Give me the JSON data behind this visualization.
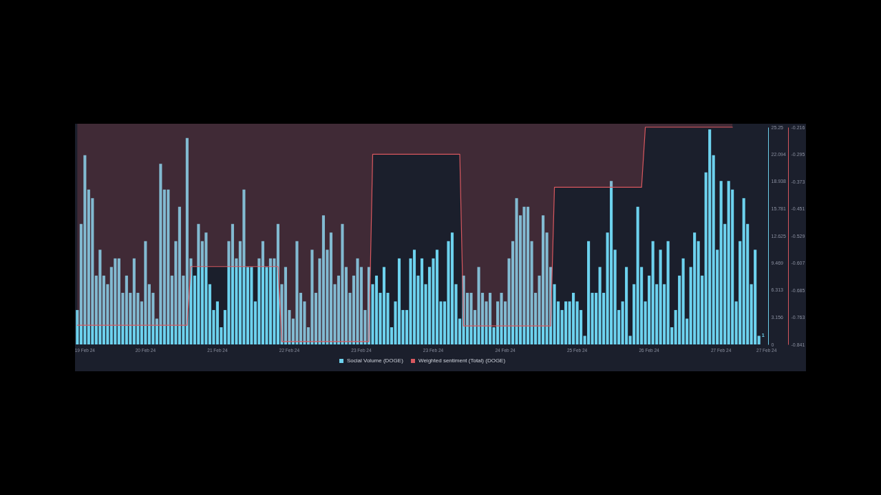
{
  "chart_data": {
    "type": "bar",
    "categories": [
      null,
      null,
      "19 Feb 24",
      null,
      null,
      null,
      null,
      null,
      null,
      null,
      null,
      null,
      null,
      null,
      null,
      null,
      null,
      null,
      "20 Feb 24",
      null,
      null,
      null,
      null,
      null,
      null,
      null,
      null,
      null,
      null,
      null,
      null,
      null,
      null,
      null,
      null,
      null,
      null,
      "21 Feb 24",
      null,
      null,
      null,
      null,
      null,
      null,
      null,
      null,
      null,
      null,
      null,
      null,
      null,
      null,
      null,
      null,
      null,
      null,
      "22 Feb 24",
      null,
      null,
      null,
      null,
      null,
      null,
      null,
      null,
      null,
      null,
      null,
      null,
      null,
      null,
      null,
      null,
      null,
      null,
      "23 Feb 24",
      null,
      null,
      null,
      null,
      null,
      null,
      null,
      null,
      null,
      null,
      null,
      null,
      null,
      null,
      null,
      null,
      null,
      null,
      "23 Feb 24",
      null,
      null,
      null,
      null,
      null,
      null,
      null,
      null,
      null,
      null,
      null,
      null,
      null,
      null,
      null,
      null,
      null,
      null,
      "24 Feb 24",
      null,
      null,
      null,
      null,
      null,
      null,
      null,
      null,
      null,
      null,
      null,
      null,
      null,
      null,
      null,
      null,
      null,
      null,
      "25 Feb 24",
      null,
      null,
      null,
      null,
      null,
      null,
      null,
      null,
      null,
      null,
      null,
      null,
      null,
      null,
      null,
      null,
      null,
      null,
      "26 Feb 24",
      null,
      null,
      null,
      null,
      null,
      null,
      null,
      null,
      null,
      null,
      null,
      null,
      null,
      null,
      null,
      null,
      null,
      null,
      "27 Feb 24",
      null,
      null,
      null,
      null,
      null,
      null,
      null,
      null,
      null,
      null,
      null,
      "27 Feb 24"
    ],
    "series": [
      {
        "name": "Social Volume (DOGE)",
        "color": "#6dd2ee",
        "values": [
          4,
          14,
          22,
          18,
          17,
          8,
          11,
          8,
          7,
          9,
          10,
          10,
          6,
          8,
          6,
          10,
          6,
          5,
          12,
          7,
          6,
          3,
          21,
          18,
          18,
          8,
          12,
          16,
          8,
          24,
          10,
          8,
          14,
          12,
          13,
          7,
          4,
          5,
          2,
          4,
          12,
          14,
          10,
          12,
          18,
          9,
          9,
          5,
          10,
          12,
          9,
          10,
          10,
          14,
          7,
          9,
          4,
          3,
          12,
          6,
          5,
          2,
          11,
          6,
          10,
          15,
          11,
          13,
          7,
          8,
          14,
          9,
          6,
          8,
          10,
          9,
          4,
          9,
          7,
          8,
          6,
          9,
          6,
          2,
          5,
          10,
          4,
          4,
          10,
          11,
          8,
          10,
          7,
          9,
          10,
          11,
          5,
          5,
          12,
          13,
          7,
          3,
          8,
          6,
          6,
          4,
          9,
          6,
          5,
          6,
          2,
          5,
          6,
          5,
          10,
          12,
          17,
          15,
          16,
          16,
          12,
          6,
          8,
          15,
          13,
          9,
          7,
          5,
          4,
          5,
          5,
          6,
          5,
          4,
          1,
          12,
          6,
          6,
          9,
          6,
          13,
          19,
          11,
          4,
          5,
          9,
          1,
          7,
          16,
          9,
          5,
          8,
          12,
          7,
          11,
          7,
          12,
          2,
          4,
          8,
          10,
          3,
          9,
          13,
          12,
          8,
          20,
          25,
          22,
          11,
          19,
          14,
          19,
          18,
          5,
          12,
          17,
          14,
          7,
          11,
          1,
          null,
          null
        ],
        "value_labels": [
          null,
          null,
          null,
          null,
          null,
          null,
          null,
          null,
          null,
          null,
          null,
          null,
          null,
          null,
          null,
          null,
          null,
          null,
          null,
          null,
          null,
          null,
          null,
          null,
          null,
          null,
          null,
          null,
          null,
          null,
          null,
          null,
          null,
          null,
          null,
          null,
          null,
          null,
          null,
          null,
          null,
          null,
          null,
          null,
          null,
          null,
          null,
          null,
          null,
          null,
          null,
          null,
          null,
          null,
          null,
          null,
          null,
          null,
          null,
          null,
          null,
          null,
          null,
          null,
          null,
          null,
          null,
          null,
          null,
          null,
          null,
          null,
          null,
          null,
          null,
          null,
          null,
          null,
          null,
          null,
          null,
          null,
          null,
          null,
          null,
          null,
          null,
          null,
          null,
          null,
          null,
          null,
          null,
          null,
          null,
          null,
          null,
          null,
          null,
          null,
          null,
          null,
          null,
          null,
          null,
          null,
          null,
          null,
          null,
          null,
          null,
          null,
          null,
          null,
          null,
          null,
          null,
          null,
          null,
          null,
          null,
          null,
          null,
          null,
          null,
          null,
          null,
          null,
          null,
          null,
          null,
          null,
          null,
          null,
          null,
          null,
          null,
          null,
          null,
          null,
          null,
          null,
          null,
          null,
          null,
          null,
          null,
          null,
          null,
          null,
          null,
          null,
          null,
          null,
          null,
          null,
          null,
          null,
          null,
          null,
          null,
          null,
          null,
          null,
          null,
          null,
          null,
          null,
          null,
          null,
          null,
          null,
          null,
          null,
          null,
          null,
          null,
          null,
          null,
          null,
          "1",
          null,
          null
        ]
      },
      {
        "name": "Weighted sentiment (Total) (DOGE)",
        "type": "area",
        "axis": "y2",
        "color": "#d9585f",
        "values": [
          -0.786,
          -0.786,
          -0.786,
          -0.786,
          -0.786,
          -0.786,
          -0.786,
          -0.786,
          -0.786,
          -0.786,
          -0.786,
          -0.786,
          -0.786,
          -0.786,
          -0.786,
          -0.786,
          -0.786,
          -0.786,
          -0.786,
          -0.786,
          -0.786,
          -0.786,
          -0.786,
          -0.786,
          -0.786,
          -0.786,
          -0.786,
          -0.786,
          -0.786,
          -0.786,
          -0.617,
          -0.617,
          -0.617,
          -0.617,
          -0.617,
          -0.617,
          -0.617,
          -0.617,
          -0.617,
          -0.617,
          -0.617,
          -0.617,
          -0.617,
          -0.617,
          -0.617,
          -0.617,
          -0.617,
          -0.617,
          -0.617,
          -0.617,
          -0.617,
          -0.617,
          -0.617,
          -0.617,
          -0.833,
          -0.833,
          -0.833,
          -0.833,
          -0.833,
          -0.833,
          -0.833,
          -0.833,
          -0.833,
          -0.833,
          -0.833,
          -0.833,
          -0.833,
          -0.833,
          -0.833,
          -0.833,
          -0.833,
          -0.833,
          -0.833,
          -0.833,
          -0.833,
          -0.833,
          -0.833,
          -0.833,
          -0.294,
          -0.294,
          -0.294,
          -0.294,
          -0.294,
          -0.294,
          -0.294,
          -0.294,
          -0.294,
          -0.294,
          -0.294,
          -0.294,
          -0.294,
          -0.294,
          -0.294,
          -0.294,
          -0.294,
          -0.294,
          -0.294,
          -0.294,
          -0.294,
          -0.294,
          -0.294,
          -0.294,
          -0.788,
          -0.788,
          -0.788,
          -0.788,
          -0.788,
          -0.788,
          -0.788,
          -0.788,
          -0.788,
          -0.788,
          -0.788,
          -0.788,
          -0.788,
          -0.788,
          -0.788,
          -0.788,
          -0.788,
          -0.788,
          -0.788,
          -0.788,
          -0.788,
          -0.788,
          -0.788,
          -0.788,
          -0.389,
          -0.389,
          -0.389,
          -0.389,
          -0.389,
          -0.389,
          -0.389,
          -0.389,
          -0.389,
          -0.389,
          -0.389,
          -0.389,
          -0.389,
          -0.389,
          -0.389,
          -0.389,
          -0.389,
          -0.389,
          -0.389,
          -0.389,
          -0.389,
          -0.389,
          -0.389,
          -0.389,
          -0.216,
          -0.216,
          -0.216,
          -0.216,
          -0.216,
          -0.216,
          -0.216,
          -0.216,
          -0.216,
          -0.216,
          -0.216,
          -0.216,
          -0.216,
          -0.216,
          -0.216,
          -0.216,
          -0.216,
          -0.216,
          -0.216,
          -0.216,
          -0.216,
          -0.216,
          -0.216,
          -0.216,
          null,
          null,
          null,
          null,
          null,
          null,
          null,
          null,
          null
        ]
      }
    ],
    "ylim": [
      0,
      25.25
    ],
    "yticks": [
      0,
      3.156,
      6.313,
      9.469,
      12.625,
      15.781,
      18.938,
      22.094,
      25.25
    ],
    "y2lim": [
      -0.841,
      -0.216
    ],
    "y2ticks": [
      -0.841,
      -0.763,
      -0.685,
      -0.607,
      -0.529,
      -0.451,
      -0.373,
      -0.295,
      -0.216
    ],
    "legend": "bottom"
  }
}
